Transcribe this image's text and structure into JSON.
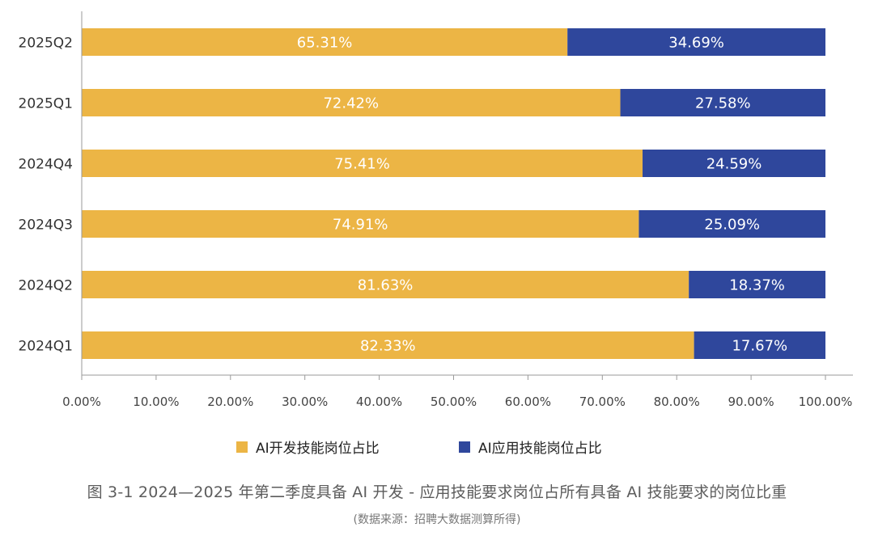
{
  "chart_data": {
    "type": "bar",
    "orientation": "horizontal",
    "stacked": true,
    "categories": [
      "2025Q2",
      "2025Q1",
      "2024Q4",
      "2024Q3",
      "2024Q2",
      "2024Q1"
    ],
    "series": [
      {
        "name": "AI开发技能岗位占比",
        "color": "#ECB545",
        "values": [
          65.31,
          72.42,
          75.41,
          74.91,
          81.63,
          82.33
        ],
        "labels": [
          "65.31%",
          "72.42%",
          "75.41%",
          "74.91%",
          "81.63%",
          "82.33%"
        ]
      },
      {
        "name": "AI应用技能岗位占比",
        "color": "#2F479C",
        "values": [
          34.69,
          27.58,
          24.59,
          25.09,
          18.37,
          17.67
        ],
        "labels": [
          "34.69%",
          "27.58%",
          "24.59%",
          "25.09%",
          "18.37%",
          "17.67%"
        ]
      }
    ],
    "xlim": [
      0,
      100
    ],
    "xticks": [
      "0.00%",
      "10.00%",
      "20.00%",
      "30.00%",
      "40.00%",
      "50.00%",
      "60.00%",
      "70.00%",
      "80.00%",
      "90.00%",
      "100.00%"
    ],
    "grid": false,
    "legend_position": "bottom"
  },
  "caption": "图 3-1 2024—2025 年第二季度具备 AI 开发 - 应用技能要求岗位占所有具备 AI 技能要求的岗位比重",
  "source": "(数据来源：招聘大数据测算所得)"
}
